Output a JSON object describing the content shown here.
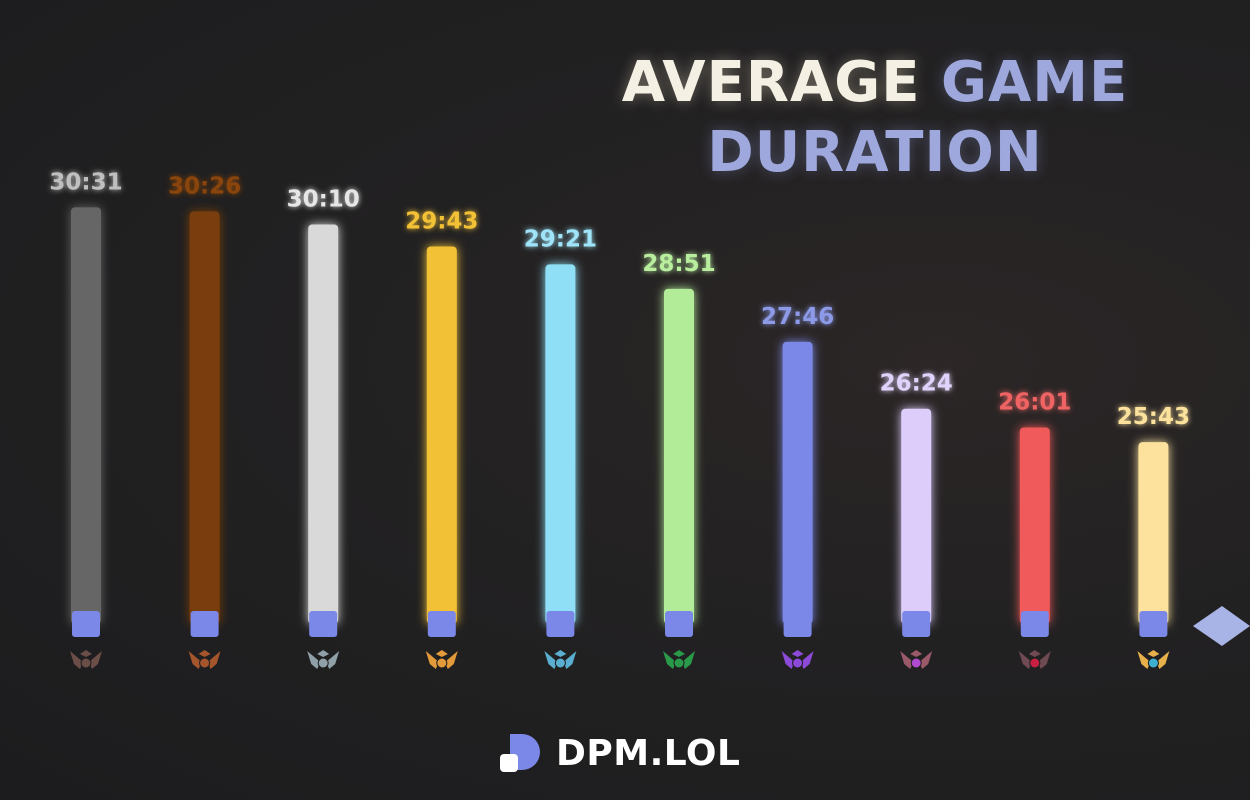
{
  "header": {
    "title_part1": "AVERAGE",
    "title_part2": "GAME",
    "title_line2": "DURATION"
  },
  "brand": {
    "name": "DPM.LOL"
  },
  "chart_data": {
    "type": "bar",
    "title": "AVERAGE GAME DURATION",
    "xlabel": "",
    "ylabel": "",
    "unit": "mm:ss",
    "ylim_seconds": [
      1320,
      1840
    ],
    "grid": false,
    "legend": "none",
    "categories": [
      "iron-rank-icon",
      "bronze-rank-icon",
      "silver-rank-icon",
      "gold-rank-icon",
      "platinum-rank-icon",
      "emerald-rank-icon",
      "diamond-rank-icon",
      "master-rank-icon",
      "grandmaster-rank-icon",
      "challenger-rank-icon"
    ],
    "labels": [
      "30:31",
      "30:26",
      "30:10",
      "29:43",
      "29:21",
      "28:51",
      "27:46",
      "26:24",
      "26:01",
      "25:43"
    ],
    "values_seconds": [
      1831,
      1826,
      1810,
      1783,
      1761,
      1731,
      1666,
      1584,
      1561,
      1543
    ],
    "colors": [
      "#666666",
      "#7a3c0a",
      "#d9d9d9",
      "#f2c136",
      "#8fe0f7",
      "#b3ec98",
      "#7b88e8",
      "#dccdfb",
      "#f05a5a",
      "#fce29c"
    ],
    "label_colors": [
      "#bfbfbf",
      "#8a4410",
      "#e6e6e6",
      "#f2c136",
      "#9fe4f8",
      "#b8ee9e",
      "#8d9ae8",
      "#e0d3fb",
      "#f06464",
      "#fce29c"
    ],
    "icon_colors": [
      "#6b4e48",
      "#a4552c",
      "#8fa0a8",
      "#e39a3a",
      "#5aaed0",
      "#2a9a4a",
      "#8c4ad8",
      "#9a5a6a",
      "#704a52",
      "#e8b04a"
    ],
    "gem_colors": [
      "#6b4e48",
      "#a4552c",
      "#8fa0a8",
      "#e39a3a",
      "#5aaed0",
      "#2a9a4a",
      "#8c4ad8",
      "#b04ad0",
      "#c82040",
      "#40b0d0"
    ]
  },
  "axis": {
    "color": "#a9b4e6",
    "marker_color": "#7b88e8"
  }
}
